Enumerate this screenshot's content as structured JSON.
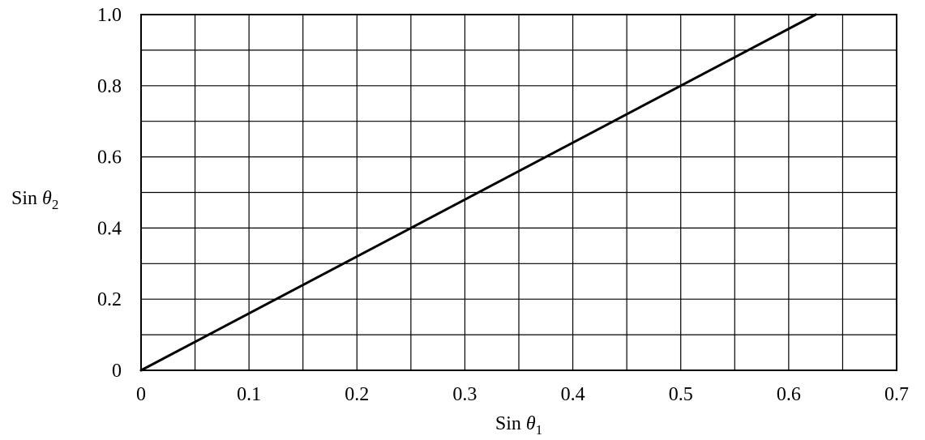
{
  "chart_data": {
    "type": "line",
    "xlabel": {
      "prefix": "Sin ",
      "symbol": "θ",
      "subscript": "1"
    },
    "ylabel": {
      "prefix": "Sin ",
      "symbol": "θ",
      "subscript": "2"
    },
    "xlim": [
      0,
      0.7
    ],
    "ylim": [
      0,
      1.0
    ],
    "x_gridlines": [
      0,
      0.05,
      0.1,
      0.15,
      0.2,
      0.25,
      0.3,
      0.35,
      0.4,
      0.45,
      0.5,
      0.55,
      0.6,
      0.65,
      0.7
    ],
    "y_gridlines": [
      0,
      0.1,
      0.2,
      0.3,
      0.4,
      0.5,
      0.6,
      0.7,
      0.8,
      0.9,
      1.0
    ],
    "x_ticks": [
      {
        "value": 0,
        "label": "0"
      },
      {
        "value": 0.1,
        "label": "0.1"
      },
      {
        "value": 0.2,
        "label": "0.2"
      },
      {
        "value": 0.3,
        "label": "0.3"
      },
      {
        "value": 0.4,
        "label": "0.4"
      },
      {
        "value": 0.5,
        "label": "0.5"
      },
      {
        "value": 0.6,
        "label": "0.6"
      },
      {
        "value": 0.7,
        "label": "0.7"
      }
    ],
    "y_ticks": [
      {
        "value": 0,
        "label": "0"
      },
      {
        "value": 0.2,
        "label": "0.2"
      },
      {
        "value": 0.4,
        "label": "0.4"
      },
      {
        "value": 0.6,
        "label": "0.6"
      },
      {
        "value": 0.8,
        "label": "0.8"
      },
      {
        "value": 1.0,
        "label": "1.0"
      }
    ],
    "grid": true,
    "series": [
      {
        "x": [
          0,
          0.625
        ],
        "y": [
          0,
          1.0
        ]
      }
    ]
  }
}
